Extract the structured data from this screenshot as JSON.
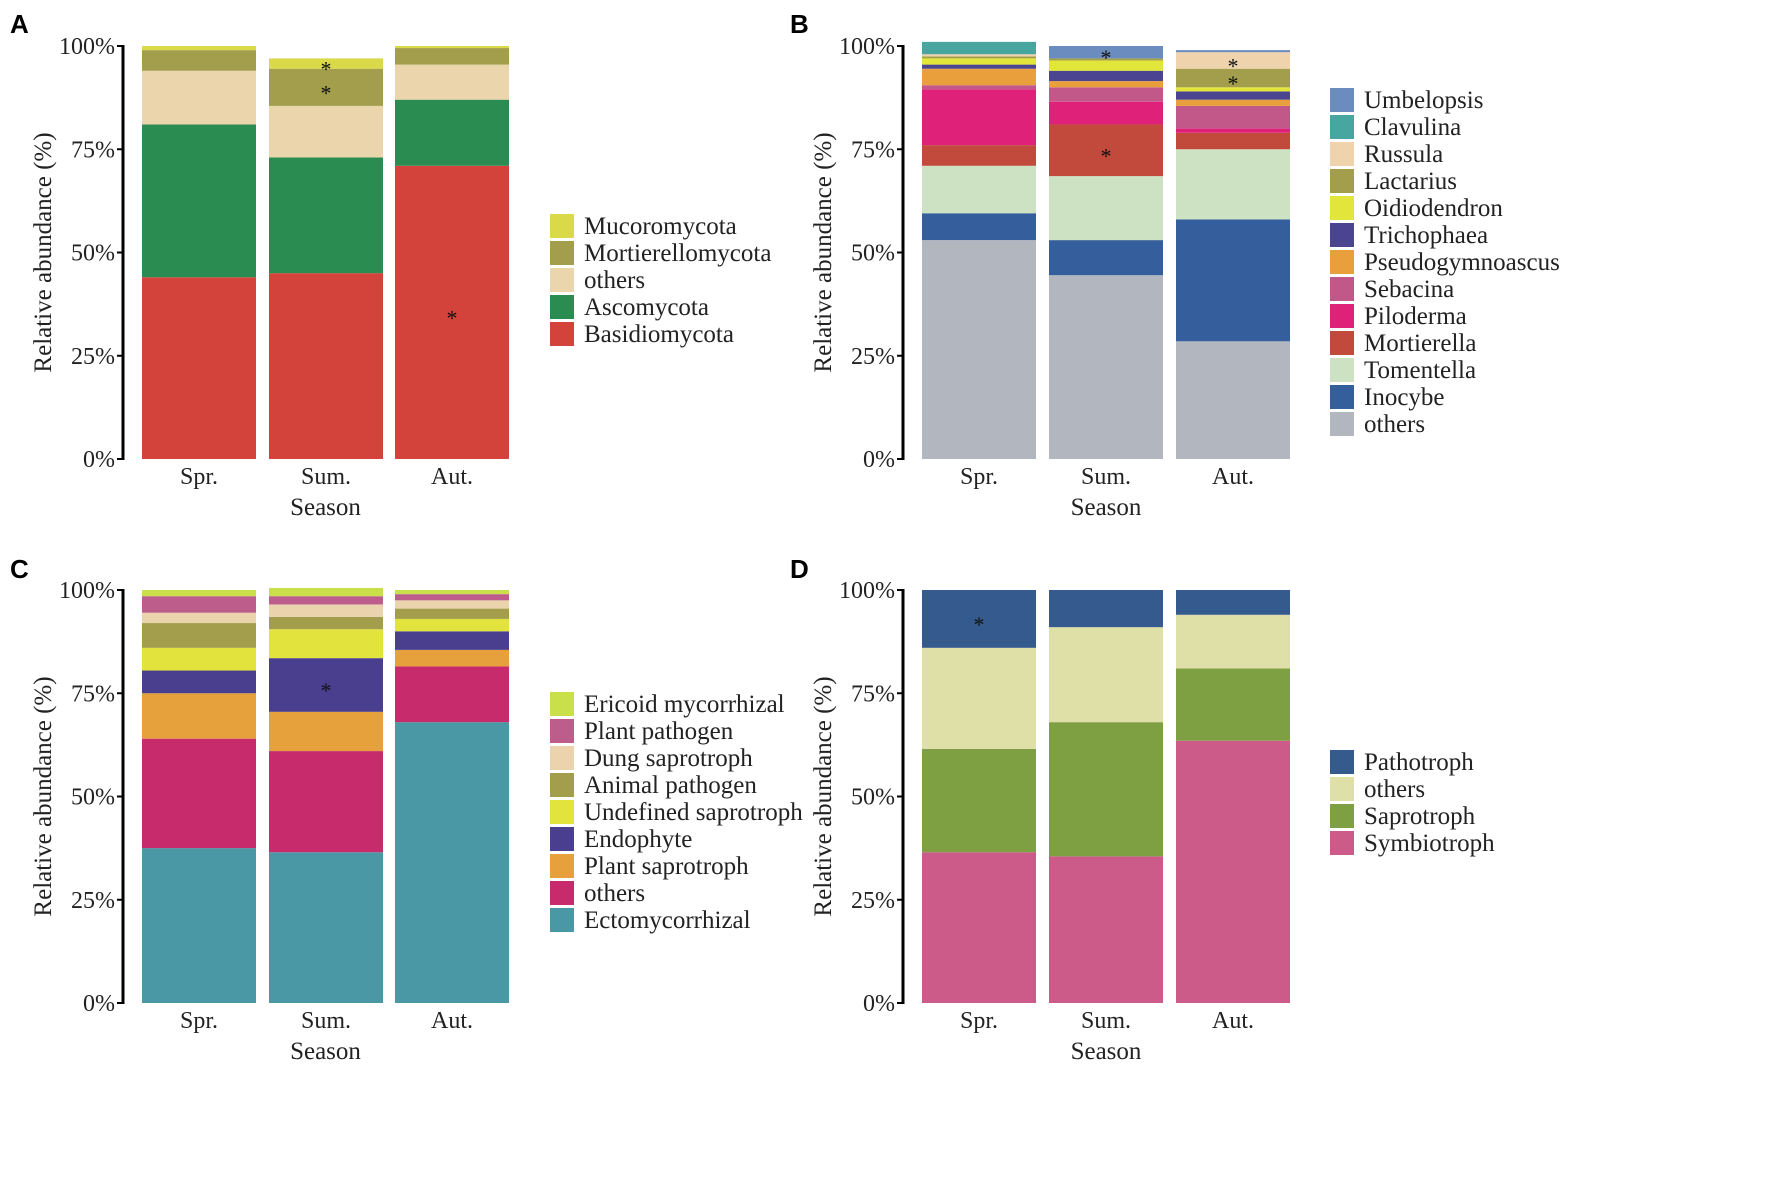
{
  "figure": {
    "ylabel": "Relative abundance (%)",
    "xlabel": "Season",
    "yticks": [
      "0%",
      "25%",
      "50%",
      "75%",
      "100%"
    ]
  },
  "chart_data": [
    {
      "panel": "A",
      "type": "bar",
      "stacked": true,
      "categories": [
        "Spr.",
        "Sum.",
        "Aut."
      ],
      "xlabel": "Season",
      "ylabel": "Relative abundance (%)",
      "ylim": [
        0,
        100
      ],
      "legend_position": "right",
      "series": [
        {
          "name": "Basidiomycota",
          "color": "#d4433b",
          "values": [
            44,
            45,
            71
          ],
          "marks": [
            null,
            null,
            "*"
          ]
        },
        {
          "name": "Ascomycota",
          "color": "#2a8c50",
          "values": [
            37,
            28,
            16
          ],
          "marks": [
            null,
            null,
            null
          ]
        },
        {
          "name": "others",
          "color": "#ebd5ac",
          "values": [
            13,
            12.5,
            8.5
          ],
          "marks": [
            null,
            null,
            null
          ]
        },
        {
          "name": "Mortierellomycota",
          "color": "#a29e4b",
          "values": [
            5,
            9,
            4
          ],
          "marks": [
            null,
            "*",
            null
          ]
        },
        {
          "name": "Mucoromycota",
          "color": "#dada49",
          "values": [
            1,
            2.5,
            0.5
          ],
          "marks": [
            null,
            "*",
            null
          ]
        }
      ]
    },
    {
      "panel": "B",
      "type": "bar",
      "stacked": true,
      "categories": [
        "Spr.",
        "Sum.",
        "Aut."
      ],
      "xlabel": "Season",
      "ylabel": "Relative abundance (%)",
      "ylim": [
        0,
        100
      ],
      "legend_position": "right",
      "series": [
        {
          "name": "others",
          "color": "#b2b6bf",
          "values": [
            53,
            44.5,
            28.5
          ],
          "marks": [
            null,
            null,
            null
          ]
        },
        {
          "name": "Inocybe",
          "color": "#345f9c",
          "values": [
            6.5,
            8.5,
            29.5
          ],
          "marks": [
            null,
            null,
            null
          ]
        },
        {
          "name": "Tomentella",
          "color": "#cde1c3",
          "values": [
            11.5,
            15.5,
            17
          ],
          "marks": [
            null,
            null,
            null
          ]
        },
        {
          "name": "Mortierella",
          "color": "#c24a3d",
          "values": [
            5,
            12.5,
            4
          ],
          "marks": [
            null,
            "*",
            null
          ]
        },
        {
          "name": "Piloderma",
          "color": "#e0217a",
          "values": [
            13.5,
            5.5,
            1
          ],
          "marks": [
            null,
            null,
            null
          ]
        },
        {
          "name": "Sebacina",
          "color": "#c2578a",
          "values": [
            1,
            3.5,
            5.5
          ],
          "marks": [
            null,
            null,
            null
          ]
        },
        {
          "name": "Pseudogymnoascus",
          "color": "#e9a03c",
          "values": [
            4,
            1.5,
            1.5
          ],
          "marks": [
            null,
            null,
            null
          ]
        },
        {
          "name": "Trichophaea",
          "color": "#4b4490",
          "values": [
            1,
            2.5,
            2
          ],
          "marks": [
            null,
            null,
            null
          ]
        },
        {
          "name": "Oidiodendron",
          "color": "#e2e53a",
          "values": [
            1.5,
            2.5,
            1
          ],
          "marks": [
            null,
            null,
            null
          ]
        },
        {
          "name": "Lactarius",
          "color": "#a29e4b",
          "values": [
            0.5,
            0.5,
            4.5
          ],
          "marks": [
            null,
            null,
            "*"
          ]
        },
        {
          "name": "Russula",
          "color": "#efd3ad",
          "values": [
            0.5,
            0,
            4
          ],
          "marks": [
            null,
            null,
            "*"
          ]
        },
        {
          "name": "Clavulina",
          "color": "#48a6a1",
          "values": [
            3,
            0,
            0
          ],
          "marks": [
            null,
            null,
            null
          ]
        },
        {
          "name": "Umbelopsis",
          "color": "#6a8cbe",
          "values": [
            0,
            3,
            0.5
          ],
          "marks": [
            null,
            "*",
            null
          ]
        }
      ]
    },
    {
      "panel": "C",
      "type": "bar",
      "stacked": true,
      "categories": [
        "Spr.",
        "Sum.",
        "Aut."
      ],
      "xlabel": "Season",
      "ylabel": "Relative abundance (%)",
      "ylim": [
        0,
        100
      ],
      "legend_position": "right",
      "series": [
        {
          "name": "Ectomycorrhizal",
          "color": "#4a97a6",
          "values": [
            37.5,
            36.5,
            68
          ],
          "marks": [
            null,
            null,
            null
          ]
        },
        {
          "name": "others",
          "color": "#c82b6c",
          "values": [
            26.5,
            24.5,
            13.5
          ],
          "marks": [
            null,
            null,
            null
          ]
        },
        {
          "name": "Plant saprotroph",
          "color": "#e6a03c",
          "values": [
            11,
            9.5,
            4
          ],
          "marks": [
            null,
            null,
            null
          ]
        },
        {
          "name": "Endophyte",
          "color": "#4a3f8f",
          "values": [
            5.5,
            13,
            4.5
          ],
          "marks": [
            null,
            "*",
            null
          ]
        },
        {
          "name": "Undefined saprotroph",
          "color": "#e2e43d",
          "values": [
            5.5,
            7,
            3
          ],
          "marks": [
            null,
            null,
            null
          ]
        },
        {
          "name": "Animal pathogen",
          "color": "#a29e4b",
          "values": [
            6,
            3,
            2.5
          ],
          "marks": [
            null,
            null,
            null
          ]
        },
        {
          "name": "Dung saprotroph",
          "color": "#ead3ad",
          "values": [
            2.5,
            3,
            2
          ],
          "marks": [
            null,
            null,
            null
          ]
        },
        {
          "name": "Plant pathogen",
          "color": "#bd5d8b",
          "values": [
            4,
            2,
            1.5
          ],
          "marks": [
            null,
            null,
            null
          ]
        },
        {
          "name": "Ericoid mycorrhizal",
          "color": "#c9e04b",
          "values": [
            1.5,
            2,
            1
          ],
          "marks": [
            null,
            null,
            null
          ]
        }
      ]
    },
    {
      "panel": "D",
      "type": "bar",
      "stacked": true,
      "categories": [
        "Spr.",
        "Sum.",
        "Aut."
      ],
      "xlabel": "Season",
      "ylabel": "Relative abundance (%)",
      "ylim": [
        0,
        100
      ],
      "legend_position": "right",
      "series": [
        {
          "name": "Symbiotroph",
          "color": "#cd5b8a",
          "values": [
            36.5,
            35.5,
            63.5
          ],
          "marks": [
            null,
            null,
            null
          ]
        },
        {
          "name": "Saprotroph",
          "color": "#7ea043",
          "values": [
            25,
            32.5,
            17.5
          ],
          "marks": [
            null,
            null,
            null
          ]
        },
        {
          "name": "others",
          "color": "#dfe0a7",
          "values": [
            24.5,
            23,
            13
          ],
          "marks": [
            null,
            null,
            null
          ]
        },
        {
          "name": "Pathotroph",
          "color": "#345a8e",
          "values": [
            14,
            9,
            6
          ],
          "marks": [
            "*",
            null,
            null
          ]
        }
      ]
    }
  ]
}
